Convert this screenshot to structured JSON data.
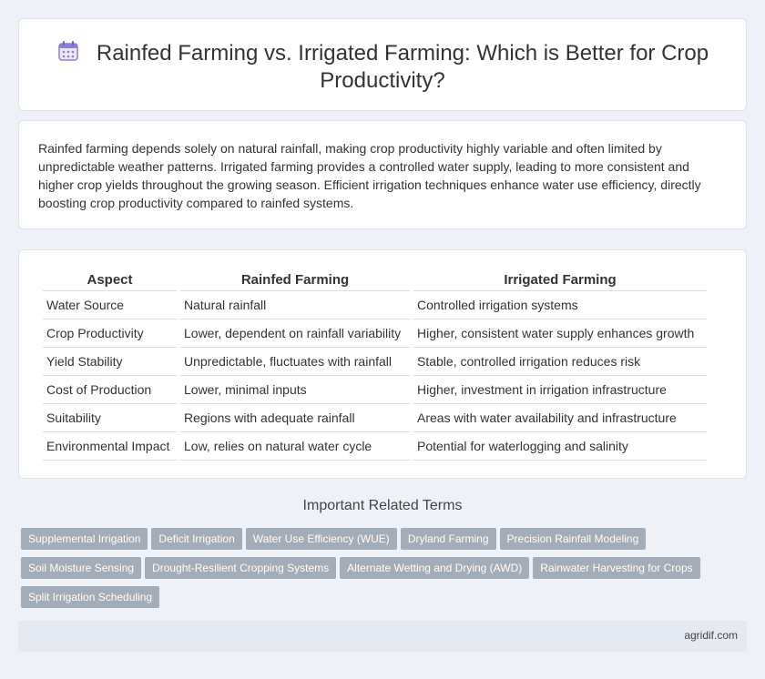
{
  "header": {
    "icon": "calendar-icon",
    "title": "Rainfed Farming vs. Irrigated Farming: Which is Better for Crop Productivity?"
  },
  "summary": {
    "text": "Rainfed farming depends solely on natural rainfall, making crop productivity highly variable and often limited by unpredictable weather patterns. Irrigated farming provides a controlled water supply, leading to more consistent and higher crop yields throughout the growing season. Efficient irrigation techniques enhance water use efficiency, directly boosting crop productivity compared to rainfed systems."
  },
  "table": {
    "headers": [
      "Aspect",
      "Rainfed Farming",
      "Irrigated Farming"
    ],
    "rows": [
      [
        "Water Source",
        "Natural rainfall",
        "Controlled irrigation systems"
      ],
      [
        "Crop Productivity",
        "Lower, dependent on rainfall variability",
        "Higher, consistent water supply enhances growth"
      ],
      [
        "Yield Stability",
        "Unpredictable, fluctuates with rainfall",
        "Stable, controlled irrigation reduces risk"
      ],
      [
        "Cost of Production",
        "Lower, minimal inputs",
        "Higher, investment in irrigation infrastructure"
      ],
      [
        "Suitability",
        "Regions with adequate rainfall",
        "Areas with water availability and infrastructure"
      ],
      [
        "Environmental Impact",
        "Low, relies on natural water cycle",
        "Potential for waterlogging and salinity"
      ]
    ]
  },
  "related": {
    "heading": "Important Related Terms",
    "tags": [
      "Supplemental Irrigation",
      "Deficit Irrigation",
      "Water Use Efficiency (WUE)",
      "Dryland Farming",
      "Precision Rainfall Modeling",
      "Soil Moisture Sensing",
      "Drought-Resilient Cropping Systems",
      "Alternate Wetting and Drying (AWD)",
      "Rainwater Harvesting for Crops",
      "Split Irrigation Scheduling"
    ]
  },
  "footer": {
    "site": "agridif.com"
  },
  "colors": {
    "background": "#eef1f7",
    "tag_background": "#a3acb9",
    "footer_background": "#e4e9f2",
    "icon_accent": "#8b7fd4"
  }
}
